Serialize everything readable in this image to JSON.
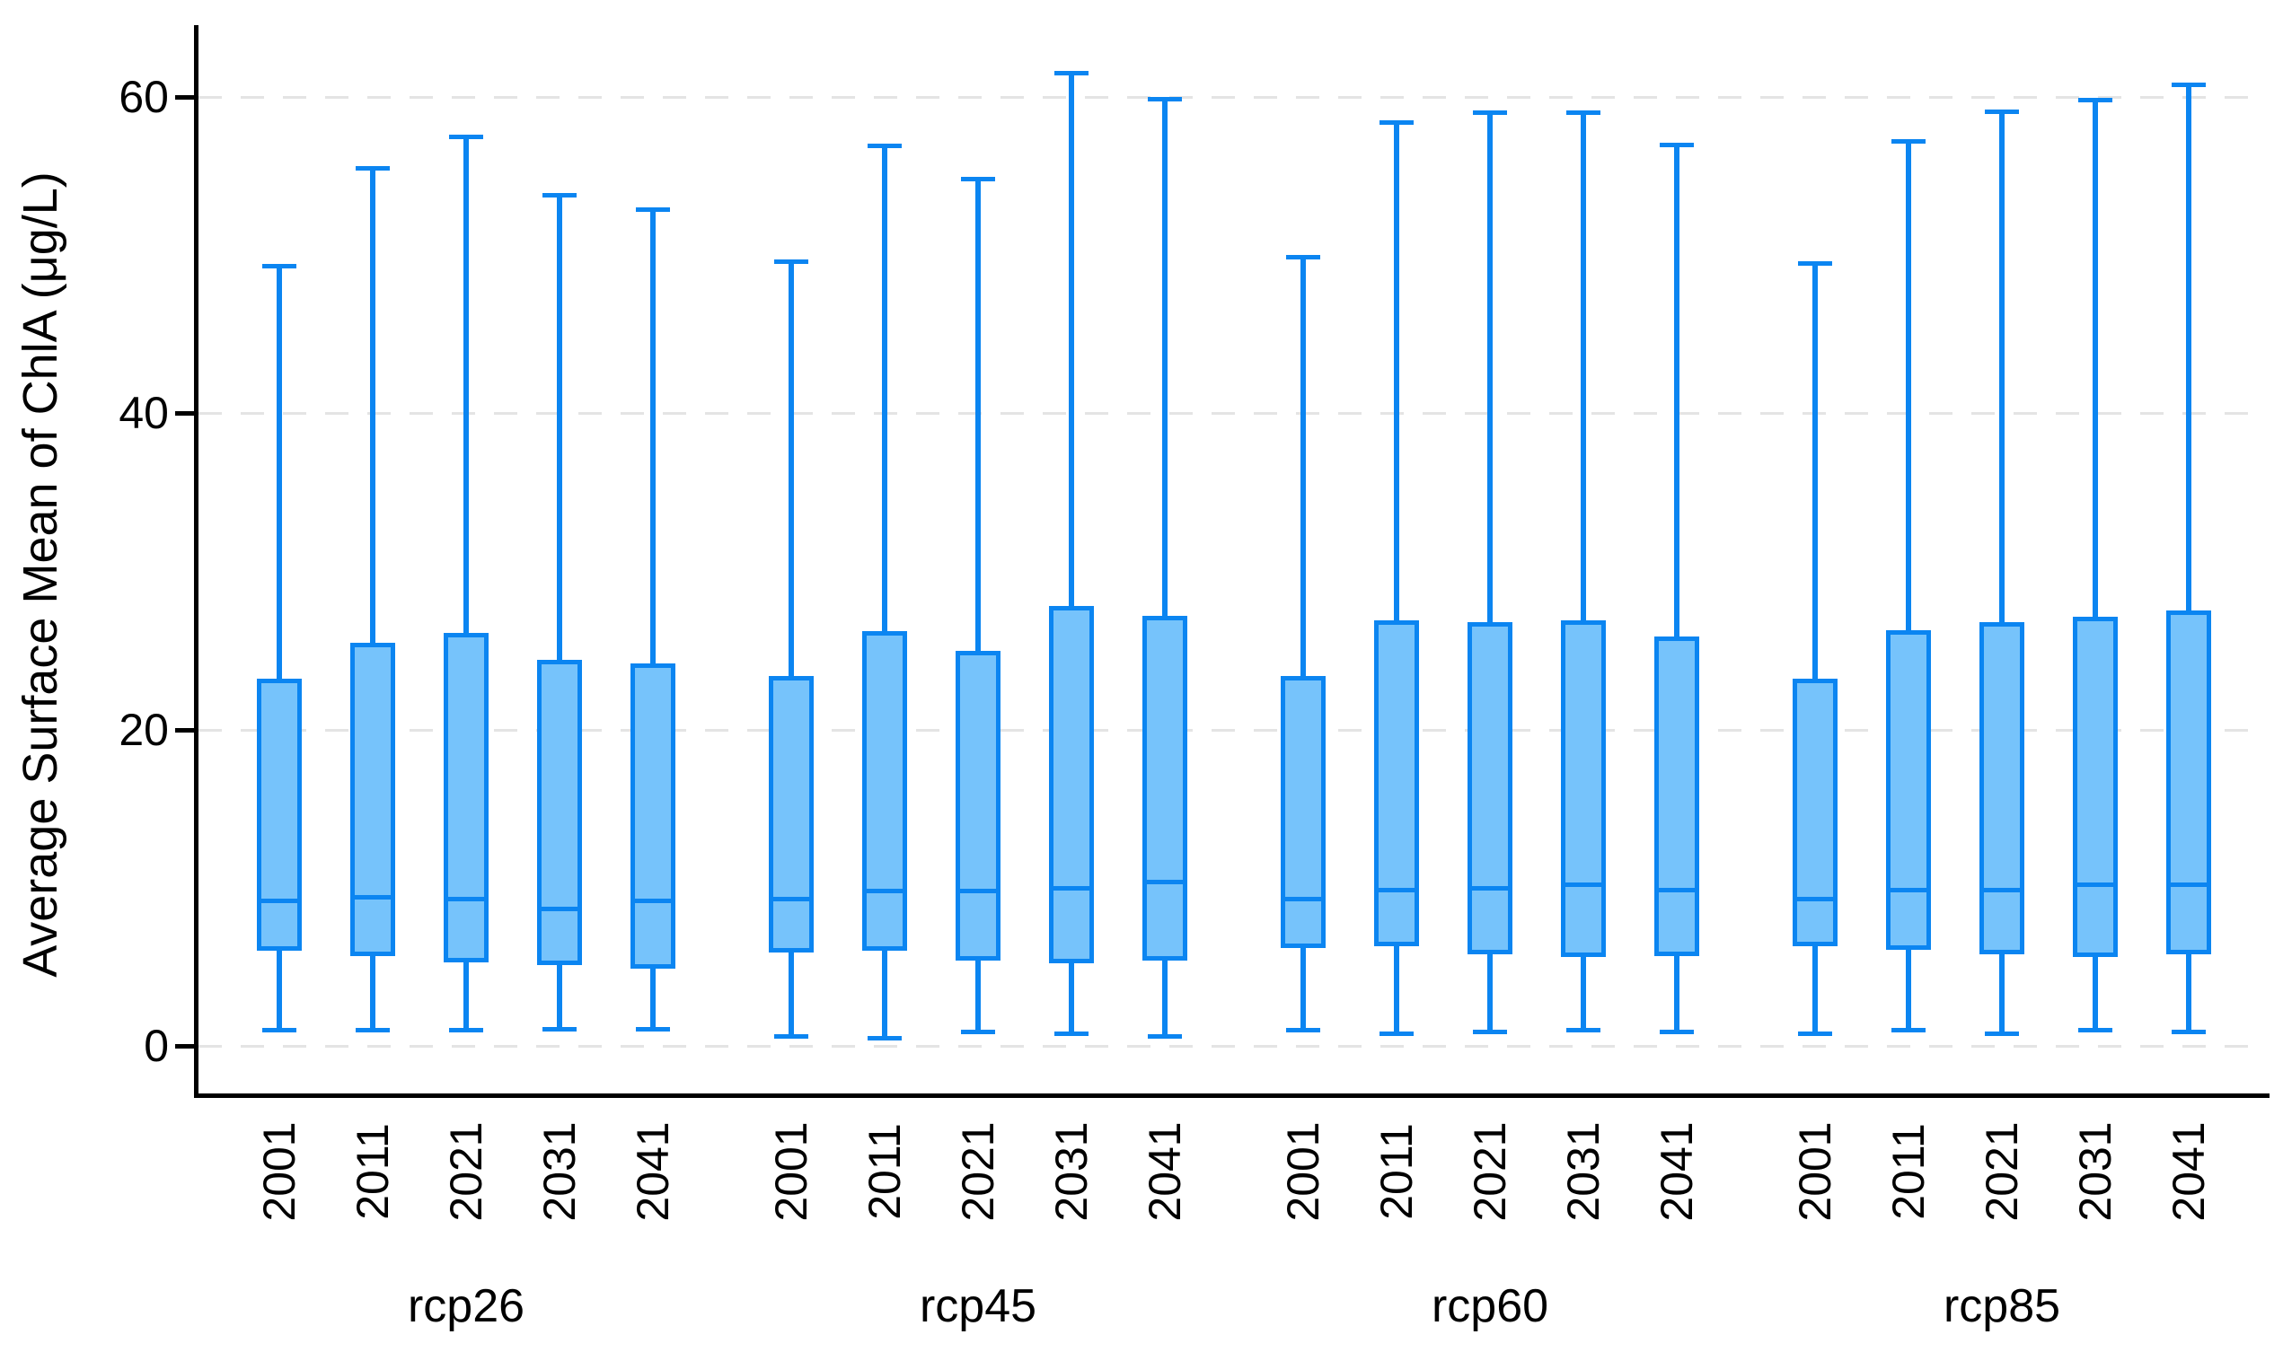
{
  "chart_data": {
    "type": "boxplot",
    "title": "",
    "xlabel": "",
    "ylabel": "Average Surface Mean of ChlA (μg/L)",
    "y_ticks": [
      0,
      20,
      40,
      60
    ],
    "y_tick_labels": [
      "0",
      "20",
      "40",
      "60"
    ],
    "ylim": [
      -2.7,
      64.6
    ],
    "grid": "horizontal dashed gridlines at each y tick",
    "legend": "none",
    "stats_order": [
      "min",
      "q1",
      "median",
      "q3",
      "max"
    ],
    "year_labels": [
      "2001",
      "2011",
      "2021",
      "2031",
      "2041"
    ],
    "group_labels": [
      "rcp26",
      "rcp45",
      "rcp60",
      "rcp85"
    ],
    "groups": [
      {
        "label": "rcp26",
        "boxes": [
          {
            "year": "2001",
            "min": 1.0,
            "q1": 6.0,
            "median": 9.2,
            "q3": 23.2,
            "max": 49.3
          },
          {
            "year": "2011",
            "min": 1.0,
            "q1": 5.7,
            "median": 9.4,
            "q3": 25.5,
            "max": 55.5
          },
          {
            "year": "2021",
            "min": 1.0,
            "q1": 5.3,
            "median": 9.3,
            "q3": 26.1,
            "max": 57.5
          },
          {
            "year": "2031",
            "min": 1.1,
            "q1": 5.1,
            "median": 8.7,
            "q3": 24.4,
            "max": 53.8
          },
          {
            "year": "2041",
            "min": 1.1,
            "q1": 4.9,
            "median": 9.2,
            "q3": 24.2,
            "max": 52.9
          }
        ]
      },
      {
        "label": "rcp45",
        "boxes": [
          {
            "year": "2001",
            "min": 0.6,
            "q1": 5.9,
            "median": 9.3,
            "q3": 23.4,
            "max": 49.6
          },
          {
            "year": "2011",
            "min": 0.5,
            "q1": 6.0,
            "median": 9.8,
            "q3": 26.2,
            "max": 56.9
          },
          {
            "year": "2021",
            "min": 0.9,
            "q1": 5.4,
            "median": 9.8,
            "q3": 25.0,
            "max": 54.8
          },
          {
            "year": "2031",
            "min": 0.8,
            "q1": 5.2,
            "median": 10.0,
            "q3": 27.8,
            "max": 61.5
          },
          {
            "year": "2041",
            "min": 0.6,
            "q1": 5.4,
            "median": 10.4,
            "q3": 27.2,
            "max": 59.9
          }
        ]
      },
      {
        "label": "rcp60",
        "boxes": [
          {
            "year": "2001",
            "min": 1.0,
            "q1": 6.2,
            "median": 9.3,
            "q3": 23.4,
            "max": 49.9
          },
          {
            "year": "2011",
            "min": 0.8,
            "q1": 6.3,
            "median": 9.9,
            "q3": 26.9,
            "max": 58.4
          },
          {
            "year": "2021",
            "min": 0.9,
            "q1": 5.8,
            "median": 10.0,
            "q3": 26.8,
            "max": 59.0
          },
          {
            "year": "2031",
            "min": 1.0,
            "q1": 5.6,
            "median": 10.2,
            "q3": 26.9,
            "max": 59.0
          },
          {
            "year": "2041",
            "min": 0.9,
            "q1": 5.7,
            "median": 9.9,
            "q3": 25.9,
            "max": 57.0
          }
        ]
      },
      {
        "label": "rcp85",
        "boxes": [
          {
            "year": "2001",
            "min": 0.8,
            "q1": 6.3,
            "median": 9.3,
            "q3": 23.2,
            "max": 49.5
          },
          {
            "year": "2011",
            "min": 1.0,
            "q1": 6.1,
            "median": 9.9,
            "q3": 26.3,
            "max": 57.2
          },
          {
            "year": "2021",
            "min": 0.8,
            "q1": 5.8,
            "median": 9.9,
            "q3": 26.8,
            "max": 59.1
          },
          {
            "year": "2031",
            "min": 1.0,
            "q1": 5.6,
            "median": 10.2,
            "q3": 27.1,
            "max": 59.8
          },
          {
            "year": "2041",
            "min": 0.9,
            "q1": 5.8,
            "median": 10.2,
            "q3": 27.5,
            "max": 60.8
          }
        ]
      }
    ],
    "colors": {
      "box_border": "#0b85f1",
      "box_fill": "#76c3fb",
      "whisker": "#0b85f1",
      "gridline": "#e4e4e4",
      "axis": "#000000",
      "text": "#000000",
      "background": "#ffffff"
    }
  }
}
